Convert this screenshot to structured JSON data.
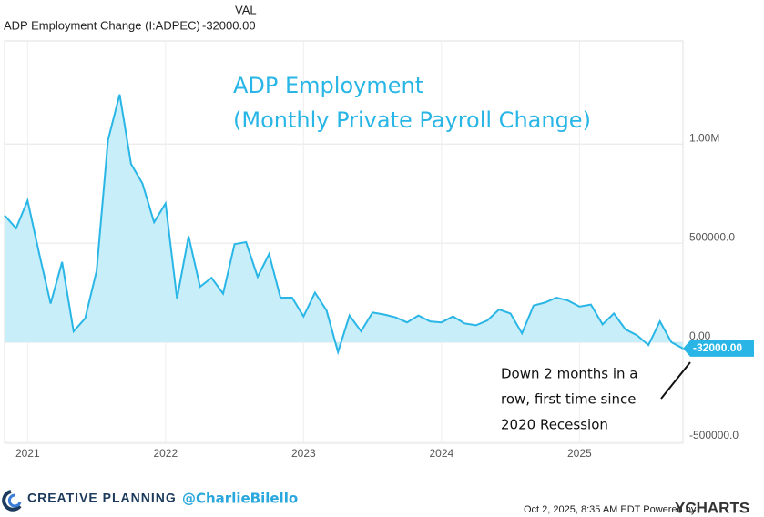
{
  "chart_data": {
    "type": "line",
    "title": "ADP Employment",
    "subtitle": "(Monthly Private Payroll Change)",
    "header": {
      "column": "VAL",
      "value": "-32000.00"
    },
    "end_label": "-32000.00",
    "annotation": [
      "Down 2 months in a",
      "row, first time since",
      "2020 Recession"
    ],
    "x": [
      2020.833,
      2020.917,
      2021,
      2021.083,
      2021.167,
      2021.25,
      2021.333,
      2021.417,
      2021.5,
      2021.583,
      2021.667,
      2021.75,
      2021.833,
      2021.917,
      2022,
      2022.083,
      2022.167,
      2022.25,
      2022.333,
      2022.417,
      2022.5,
      2022.583,
      2022.667,
      2022.75,
      2022.833,
      2022.917,
      2023,
      2023.083,
      2023.167,
      2023.25,
      2023.333,
      2023.417,
      2023.5,
      2023.583,
      2023.667,
      2023.75,
      2023.833,
      2023.917,
      2024,
      2024.083,
      2024.167,
      2024.25,
      2024.333,
      2024.417,
      2024.5,
      2024.583,
      2024.667,
      2024.75,
      2024.833,
      2024.917,
      2025,
      2025.083,
      2025.167,
      2025.25,
      2025.333,
      2025.417,
      2025.5,
      2025.583,
      2025.667,
      2025.75
    ],
    "series": [
      {
        "name": "ADP Employment Change (I:ADPEC)",
        "color": "#29b6e6",
        "fill": "#c8eef9",
        "values": [
          640000,
          575000,
          715000,
          450000,
          195000,
          405000,
          55000,
          120000,
          360000,
          1020000,
          1250000,
          900000,
          800000,
          605000,
          700000,
          220000,
          535000,
          280000,
          325000,
          245000,
          495000,
          505000,
          330000,
          445000,
          225000,
          225000,
          130000,
          250000,
          160000,
          -50000,
          135000,
          55000,
          150000,
          140000,
          125000,
          100000,
          135000,
          105000,
          100000,
          130000,
          95000,
          85000,
          110000,
          165000,
          145000,
          45000,
          185000,
          200000,
          225000,
          210000,
          180000,
          190000,
          90000,
          145000,
          65000,
          35000,
          -15000,
          105000,
          0,
          -32000
        ]
      }
    ],
    "xlim": [
      2020.833,
      2025.75
    ],
    "xticks": [
      2021,
      2022,
      2023,
      2024,
      2025
    ],
    "ylim": [
      -510000,
      1520000
    ],
    "yticks": [
      {
        "value": -500000,
        "label": "-500000.0"
      },
      {
        "value": 0,
        "label": "0.00"
      },
      {
        "value": 500000,
        "label": "500000.0"
      },
      {
        "value": 1000000,
        "label": "1.00M"
      }
    ],
    "grid": true
  },
  "footer": {
    "brand": "CREATIVE PLANNING",
    "handle": "@CharlieBilello",
    "stamp": "Oct 2, 2025, 8:35 AM EDT Powered by",
    "logo": "YCHARTS"
  }
}
